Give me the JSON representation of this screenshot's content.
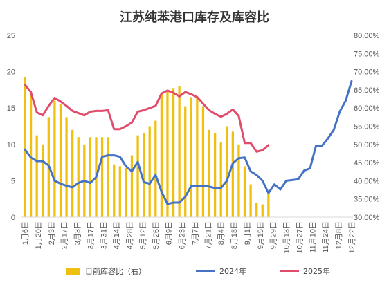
{
  "chart_data": {
    "type": "bar+line",
    "title": "江苏纯苯港口库存及库容比",
    "left_axis": {
      "min": 0,
      "max": 25,
      "ticks": [
        "0",
        "5",
        "10",
        "15",
        "20",
        "25"
      ]
    },
    "right_axis": {
      "min": 30,
      "max": 80,
      "ticks": [
        "30.00%",
        "35.00%",
        "40.00%",
        "45.00%",
        "50.00%",
        "55.00%",
        "60.00%",
        "65.00%",
        "70.00%",
        "75.00%",
        "80.00%"
      ]
    },
    "x_labels": [
      "1月6日",
      "1月20日",
      "2月3日",
      "2月17日",
      "3月3日",
      "3月17日",
      "3月31日",
      "4月14日",
      "4月28日",
      "5月12日",
      "5月26日",
      "6月9日",
      "6月23日",
      "7月7日",
      "7月21日",
      "8月4日",
      "8月18日",
      "9月1日",
      "9月15日",
      "9月29日",
      "10月13日",
      "10月27日",
      "11月10日",
      "11月24日",
      "12月8日",
      "12月22日"
    ],
    "x_label_ticks": [
      "1月6日",
      "1月20日",
      "2月3日",
      "2月17日",
      "3月3日",
      "3月17日",
      "3月31日",
      "4月14日",
      "4月28日",
      "5月12日",
      "5月26日",
      "6月9日",
      "6月23日",
      "7月7日",
      "7月21日",
      "8月4日",
      "8月18日",
      "9月1日",
      "9月15日",
      "9月29日",
      "10月13日",
      "10月27日",
      "11月10日",
      "11月24日",
      "12月8日",
      "12月22日"
    ],
    "series": [
      {
        "name": "目前库容比（右）",
        "kind": "bar",
        "axis": "right",
        "color": "#F0C010",
        "values": [
          68.5,
          63.5,
          52.5,
          50.0,
          57.5,
          62.0,
          61.0,
          57.5,
          54.0,
          52.0,
          50.0,
          52.0,
          52.0,
          52.0,
          52.0,
          44.5,
          44.0,
          43.5,
          47.0,
          52.5,
          53.0,
          55.0,
          56.5,
          64.0,
          65.0,
          65.5,
          66.0,
          60.5,
          63.0,
          63.0,
          60.5,
          54.0,
          53.0,
          50.5,
          55.0,
          53.5,
          50.0,
          44.0,
          39.0,
          34.0,
          33.5,
          36.5
        ]
      },
      {
        "name": "2024年",
        "kind": "line",
        "axis": "left",
        "color": "#4472C4",
        "values": [
          9.3,
          8.2,
          7.7,
          7.7,
          7.1,
          5.0,
          4.6,
          4.3,
          4.1,
          4.7,
          5.0,
          4.7,
          5.5,
          8.3,
          8.5,
          8.5,
          8.3,
          7.0,
          6.3,
          7.6,
          4.8,
          4.6,
          5.8,
          3.5,
          1.8,
          2.0,
          2.0,
          2.8,
          4.3,
          4.3,
          4.3,
          4.2,
          4.0,
          4.0,
          5.0,
          7.4,
          8.1,
          8.2,
          6.3,
          5.8,
          5.0,
          3.3,
          4.5,
          3.8,
          5.0,
          5.1,
          5.2,
          6.4,
          6.7,
          9.8,
          9.8,
          10.8,
          12.0,
          14.5,
          16.0,
          18.7
        ]
      },
      {
        "name": "2025年",
        "kind": "line",
        "axis": "left",
        "color": "#E04C6A",
        "values": [
          18.2,
          17.2,
          14.4,
          14.0,
          15.3,
          16.4,
          15.9,
          15.3,
          14.6,
          14.3,
          14.0,
          14.5,
          14.6,
          14.6,
          14.7,
          12.1,
          12.1,
          12.5,
          13.0,
          14.5,
          14.7,
          15.0,
          15.3,
          17.0,
          17.4,
          17.1,
          16.6,
          17.2,
          16.9,
          16.5,
          15.6,
          14.7,
          14.2,
          13.8,
          14.2,
          14.8,
          13.9,
          10.2,
          10.2,
          9.0,
          9.2,
          9.9
        ]
      }
    ],
    "legend_position": "bottom",
    "grid": false
  }
}
